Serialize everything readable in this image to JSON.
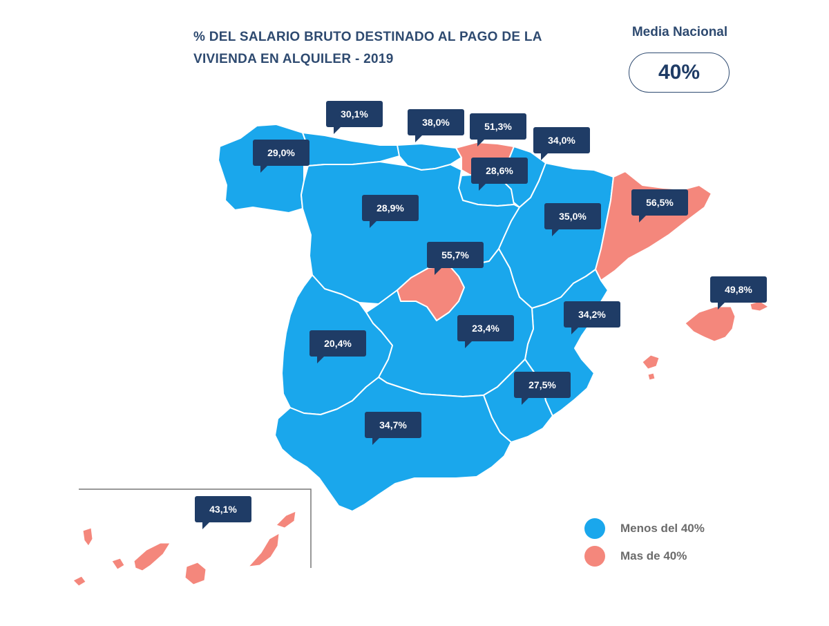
{
  "title": {
    "line1": "% DEL SALARIO BRUTO DESTINADO AL PAGO DE LA",
    "line2": "VIVIENDA EN ALQUILER - 2019"
  },
  "national": {
    "label": "Media Nacional",
    "value": "40%"
  },
  "colors": {
    "below": "#1aa7ec",
    "above": "#f4877c",
    "callout": "#1f3c66",
    "border": "#ffffff"
  },
  "regions": [
    {
      "id": "galicia",
      "value": "29,0%",
      "category": "below"
    },
    {
      "id": "asturias",
      "value": "30,1%",
      "category": "below"
    },
    {
      "id": "cantabria",
      "value": "38,0%",
      "category": "below"
    },
    {
      "id": "pais-vasco",
      "value": "51,3%",
      "category": "above"
    },
    {
      "id": "navarra",
      "value": "34,0%",
      "category": "below"
    },
    {
      "id": "la-rioja",
      "value": "28,6%",
      "category": "below"
    },
    {
      "id": "castilla-y-leon",
      "value": "28,9%",
      "category": "below"
    },
    {
      "id": "aragon",
      "value": "35,0%",
      "category": "below"
    },
    {
      "id": "cataluna",
      "value": "56,5%",
      "category": "above"
    },
    {
      "id": "madrid",
      "value": "55,7%",
      "category": "above"
    },
    {
      "id": "baleares",
      "value": "49,8%",
      "category": "above"
    },
    {
      "id": "valencia",
      "value": "34,2%",
      "category": "below"
    },
    {
      "id": "extremadura",
      "value": "20,4%",
      "category": "below"
    },
    {
      "id": "castilla-la-mancha",
      "value": "23,4%",
      "category": "below"
    },
    {
      "id": "murcia",
      "value": "27,5%",
      "category": "below"
    },
    {
      "id": "andalucia",
      "value": "34,7%",
      "category": "below"
    },
    {
      "id": "canarias",
      "value": "43,1%",
      "category": "above"
    }
  ],
  "legend": [
    {
      "label": "Menos del 40%",
      "color": "#1aa7ec"
    },
    {
      "label": "Mas de 40%",
      "color": "#f4877c"
    }
  ]
}
